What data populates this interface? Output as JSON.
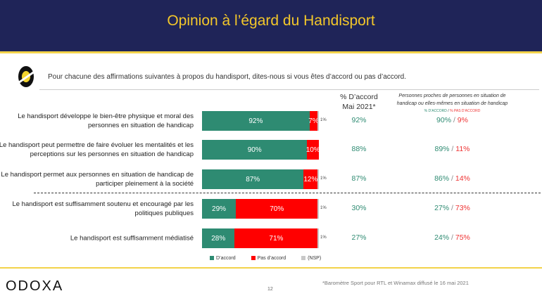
{
  "title": "Opinion à l’égard du Handisport",
  "question": "Pour chacune des affirmations suivantes à propos du handisport, dites-nous si vous êtes d’accord ou pas d’accord.",
  "col1": {
    "line1": "% D’accord",
    "line2": "Mai 2021*"
  },
  "col2": {
    "line1": "Personnes proches de personnes en situation de",
    "line2": "handicap ou elles-mêmes en situation de handicap",
    "legend_agree": "% D’ACCORD",
    "sep": "/",
    "legend_disagree": "% PAS D’ACCORD"
  },
  "colors": {
    "agree": "#2e8b72",
    "disagree": "#ff0000",
    "nsp": "#c8c8c8"
  },
  "chart_data": {
    "type": "bar",
    "stacked": true,
    "series_names": [
      "D’accord",
      "Pas d’accord",
      "(NSP)"
    ],
    "rows": [
      {
        "label": "Le handisport développe le bien-être physique et moral des personnes en situation de handicap",
        "agree": 92,
        "agree_label": "92%",
        "disagree": 7,
        "disagree_label": "7%",
        "nsp": 1,
        "nsp_label": "1%",
        "mai2021": "92%",
        "proches_agree": "90%",
        "proches_disagree": "9%"
      },
      {
        "label": "Le handisport peut permettre de faire évoluer les mentalités et les perceptions sur les personnes en situation de handicap",
        "agree": 90,
        "agree_label": "90%",
        "disagree": 10,
        "disagree_label": "10%",
        "nsp": 0,
        "nsp_label": "",
        "mai2021": "88%",
        "proches_agree": "89%",
        "proches_disagree": "11%"
      },
      {
        "label": "Le handisport permet aux personnes en situation de handicap de participer pleinement à la société",
        "agree": 87,
        "agree_label": "87%",
        "disagree": 12,
        "disagree_label": "12%",
        "nsp": 1,
        "nsp_label": "1%",
        "mai2021": "87%",
        "proches_agree": "86%",
        "proches_disagree": "14%"
      },
      {
        "label": "Le handisport est suffisamment soutenu et encouragé par les politiques publiques",
        "agree": 29,
        "agree_label": "29%",
        "disagree": 70,
        "disagree_label": "70%",
        "nsp": 1,
        "nsp_label": "1%",
        "mai2021": "30%",
        "proches_agree": "27%",
        "proches_disagree": "73%"
      },
      {
        "label": "Le handisport est suffisamment médiatisé",
        "agree": 28,
        "agree_label": "28%",
        "disagree": 71,
        "disagree_label": "71%",
        "nsp": 1,
        "nsp_label": "1%",
        "mai2021": "27%",
        "proches_agree": "24%",
        "proches_disagree": "75%"
      }
    ]
  },
  "legend": {
    "agree": "D’accord",
    "disagree": "Pas d’accord",
    "nsp": "(NSP)"
  },
  "footer": {
    "brand": "ODOXA",
    "page": "12",
    "source": "*Baromètre Sport pour RTL et Winamax diffusé le 16 mai 2021"
  }
}
